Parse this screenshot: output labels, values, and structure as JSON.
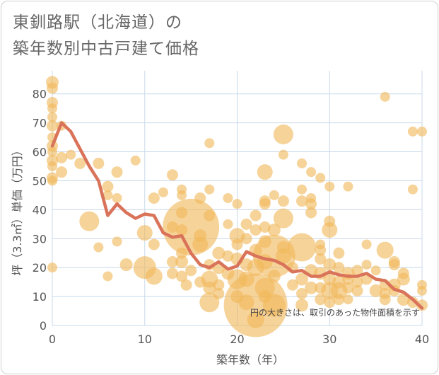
{
  "title_line1": "東釧路駅（北海道）の",
  "title_line2": "築年数別中古戸建て価格",
  "chart_data": {
    "type": "scatter",
    "title": "東釧路駅（北海道）の築年数別中古戸建て価格",
    "xlabel": "築年数（年）",
    "ylabel": "坪（3.3㎡）単価（万円）",
    "xlim": [
      0,
      40
    ],
    "ylim": [
      0,
      88
    ],
    "xticks": [
      0,
      10,
      20,
      30,
      40
    ],
    "yticks": [
      0,
      10,
      20,
      30,
      40,
      50,
      60,
      70,
      80
    ],
    "grid": true,
    "note": "円の大きさは、取引のあった物件面積を示す",
    "colors": {
      "bubble": "#f1b85a",
      "line": "#d9735a",
      "grid": "#c8d9ea"
    },
    "bubbles": [
      {
        "x": 0,
        "y": 84,
        "s": 9
      },
      {
        "x": 0,
        "y": 82,
        "s": 8
      },
      {
        "x": 0,
        "y": 77,
        "s": 8
      },
      {
        "x": 0,
        "y": 75,
        "s": 7
      },
      {
        "x": 0,
        "y": 72,
        "s": 7
      },
      {
        "x": 0,
        "y": 69,
        "s": 8
      },
      {
        "x": 0,
        "y": 65,
        "s": 7
      },
      {
        "x": 0,
        "y": 62,
        "s": 8
      },
      {
        "x": 0,
        "y": 60,
        "s": 7
      },
      {
        "x": 0,
        "y": 57,
        "s": 8
      },
      {
        "x": 0,
        "y": 55,
        "s": 7
      },
      {
        "x": 0,
        "y": 51,
        "s": 8
      },
      {
        "x": 0,
        "y": 50,
        "s": 7
      },
      {
        "x": 0,
        "y": 20,
        "s": 7
      },
      {
        "x": 1,
        "y": 69,
        "s": 7
      },
      {
        "x": 1,
        "y": 58,
        "s": 8
      },
      {
        "x": 1,
        "y": 53,
        "s": 8
      },
      {
        "x": 2,
        "y": 59,
        "s": 7
      },
      {
        "x": 3,
        "y": 56,
        "s": 8
      },
      {
        "x": 4,
        "y": 36,
        "s": 14
      },
      {
        "x": 5,
        "y": 27,
        "s": 7
      },
      {
        "x": 5,
        "y": 56,
        "s": 8
      },
      {
        "x": 6,
        "y": 48,
        "s": 8
      },
      {
        "x": 6,
        "y": 45,
        "s": 7
      },
      {
        "x": 6,
        "y": 17,
        "s": 7
      },
      {
        "x": 7,
        "y": 53,
        "s": 8
      },
      {
        "x": 7,
        "y": 44,
        "s": 7
      },
      {
        "x": 7,
        "y": 29,
        "s": 7
      },
      {
        "x": 8,
        "y": 21,
        "s": 9
      },
      {
        "x": 9,
        "y": 57,
        "s": 7
      },
      {
        "x": 10,
        "y": 32,
        "s": 11
      },
      {
        "x": 10,
        "y": 20,
        "s": 16
      },
      {
        "x": 11,
        "y": 44,
        "s": 8
      },
      {
        "x": 11,
        "y": 28,
        "s": 8
      },
      {
        "x": 11,
        "y": 17,
        "s": 12
      },
      {
        "x": 12,
        "y": 46,
        "s": 7
      },
      {
        "x": 13,
        "y": 52,
        "s": 8
      },
      {
        "x": 13,
        "y": 34,
        "s": 8
      },
      {
        "x": 13,
        "y": 22,
        "s": 8
      },
      {
        "x": 13,
        "y": 18,
        "s": 8
      },
      {
        "x": 14,
        "y": 47,
        "s": 7
      },
      {
        "x": 14,
        "y": 45,
        "s": 7
      },
      {
        "x": 14,
        "y": 39,
        "s": 8
      },
      {
        "x": 14,
        "y": 33,
        "s": 8
      },
      {
        "x": 14,
        "y": 25,
        "s": 8
      },
      {
        "x": 14,
        "y": 22,
        "s": 9
      },
      {
        "x": 14,
        "y": 17,
        "s": 8
      },
      {
        "x": 14.5,
        "y": 14,
        "s": 8
      },
      {
        "x": 15,
        "y": 34,
        "s": 40
      },
      {
        "x": 15,
        "y": 19,
        "s": 8
      },
      {
        "x": 16,
        "y": 44,
        "s": 8
      },
      {
        "x": 16,
        "y": 31,
        "s": 9
      },
      {
        "x": 16,
        "y": 28,
        "s": 11
      },
      {
        "x": 16,
        "y": 15,
        "s": 8
      },
      {
        "x": 17,
        "y": 63,
        "s": 7
      },
      {
        "x": 17,
        "y": 47,
        "s": 7
      },
      {
        "x": 17,
        "y": 38,
        "s": 8
      },
      {
        "x": 17,
        "y": 21,
        "s": 8
      },
      {
        "x": 17,
        "y": 16,
        "s": 12
      },
      {
        "x": 17,
        "y": 13,
        "s": 9
      },
      {
        "x": 17,
        "y": 8,
        "s": 14
      },
      {
        "x": 18,
        "y": 25,
        "s": 9
      },
      {
        "x": 18,
        "y": 20,
        "s": 9
      },
      {
        "x": 18,
        "y": 14,
        "s": 8
      },
      {
        "x": 18,
        "y": 11,
        "s": 8
      },
      {
        "x": 19,
        "y": 44,
        "s": 7
      },
      {
        "x": 19,
        "y": 35,
        "s": 7
      },
      {
        "x": 19,
        "y": 24,
        "s": 8
      },
      {
        "x": 19,
        "y": 18,
        "s": 9
      },
      {
        "x": 20,
        "y": 42,
        "s": 7
      },
      {
        "x": 20,
        "y": 31,
        "s": 11
      },
      {
        "x": 20,
        "y": 28,
        "s": 8
      },
      {
        "x": 20,
        "y": 23,
        "s": 9
      },
      {
        "x": 20,
        "y": 16,
        "s": 14
      },
      {
        "x": 20,
        "y": 10,
        "s": 9
      },
      {
        "x": 21,
        "y": 35,
        "s": 8
      },
      {
        "x": 21,
        "y": 30,
        "s": 8
      },
      {
        "x": 21,
        "y": 21,
        "s": 9
      },
      {
        "x": 21,
        "y": 16,
        "s": 11
      },
      {
        "x": 21,
        "y": 8,
        "s": 11
      },
      {
        "x": 22,
        "y": 38,
        "s": 8
      },
      {
        "x": 22,
        "y": 33,
        "s": 8
      },
      {
        "x": 22,
        "y": 26,
        "s": 9
      },
      {
        "x": 22,
        "y": 20,
        "s": 12
      },
      {
        "x": 22,
        "y": 7,
        "s": 45
      },
      {
        "x": 22,
        "y": 2,
        "s": 12
      },
      {
        "x": 23,
        "y": 53,
        "s": 11
      },
      {
        "x": 23,
        "y": 43,
        "s": 8
      },
      {
        "x": 23,
        "y": 42,
        "s": 8
      },
      {
        "x": 23,
        "y": 34,
        "s": 8
      },
      {
        "x": 23,
        "y": 29,
        "s": 9
      },
      {
        "x": 23,
        "y": 22,
        "s": 11
      },
      {
        "x": 23,
        "y": 13,
        "s": 14
      },
      {
        "x": 23,
        "y": 10,
        "s": 9
      },
      {
        "x": 24,
        "y": 45,
        "s": 7
      },
      {
        "x": 24,
        "y": 33,
        "s": 9
      },
      {
        "x": 24,
        "y": 24,
        "s": 30
      },
      {
        "x": 24,
        "y": 17,
        "s": 9
      },
      {
        "x": 24,
        "y": 7,
        "s": 16
      },
      {
        "x": 25,
        "y": 66,
        "s": 14
      },
      {
        "x": 25,
        "y": 59,
        "s": 7
      },
      {
        "x": 25,
        "y": 43,
        "s": 8
      },
      {
        "x": 25,
        "y": 37,
        "s": 14
      },
      {
        "x": 25,
        "y": 27,
        "s": 9
      },
      {
        "x": 25,
        "y": 24,
        "s": 11
      },
      {
        "x": 26,
        "y": 20,
        "s": 8
      },
      {
        "x": 26,
        "y": 14,
        "s": 8
      },
      {
        "x": 27,
        "y": 56,
        "s": 7
      },
      {
        "x": 27,
        "y": 47,
        "s": 7
      },
      {
        "x": 27,
        "y": 43,
        "s": 8
      },
      {
        "x": 27,
        "y": 27,
        "s": 20
      },
      {
        "x": 27,
        "y": 16,
        "s": 9
      },
      {
        "x": 27,
        "y": 11,
        "s": 8
      },
      {
        "x": 27,
        "y": 7,
        "s": 9
      },
      {
        "x": 28,
        "y": 53,
        "s": 7
      },
      {
        "x": 28,
        "y": 44,
        "s": 7
      },
      {
        "x": 28,
        "y": 42,
        "s": 8
      },
      {
        "x": 28,
        "y": 39,
        "s": 8
      },
      {
        "x": 28,
        "y": 19,
        "s": 9
      },
      {
        "x": 28,
        "y": 13,
        "s": 9
      },
      {
        "x": 29,
        "y": 51,
        "s": 7
      },
      {
        "x": 29,
        "y": 28,
        "s": 7
      },
      {
        "x": 29,
        "y": 26,
        "s": 8
      },
      {
        "x": 29,
        "y": 23,
        "s": 8
      },
      {
        "x": 29,
        "y": 18,
        "s": 9
      },
      {
        "x": 29,
        "y": 13,
        "s": 8
      },
      {
        "x": 29,
        "y": 9,
        "s": 8
      },
      {
        "x": 30,
        "y": 48,
        "s": 7
      },
      {
        "x": 30,
        "y": 36,
        "s": 8
      },
      {
        "x": 30,
        "y": 33,
        "s": 11
      },
      {
        "x": 30,
        "y": 21,
        "s": 9
      },
      {
        "x": 30,
        "y": 16,
        "s": 9
      },
      {
        "x": 30,
        "y": 12,
        "s": 12
      },
      {
        "x": 30,
        "y": 8,
        "s": 8
      },
      {
        "x": 31,
        "y": 25,
        "s": 8
      },
      {
        "x": 31,
        "y": 20,
        "s": 8
      },
      {
        "x": 31,
        "y": 15,
        "s": 9
      },
      {
        "x": 31,
        "y": 12,
        "s": 12
      },
      {
        "x": 31,
        "y": 9,
        "s": 8
      },
      {
        "x": 32,
        "y": 48,
        "s": 7
      },
      {
        "x": 32,
        "y": 18,
        "s": 9
      },
      {
        "x": 32,
        "y": 16,
        "s": 8
      },
      {
        "x": 32,
        "y": 13,
        "s": 8
      },
      {
        "x": 32,
        "y": 9,
        "s": 7
      },
      {
        "x": 33,
        "y": 19,
        "s": 8
      },
      {
        "x": 33,
        "y": 15,
        "s": 8
      },
      {
        "x": 33,
        "y": 12,
        "s": 8
      },
      {
        "x": 34,
        "y": 28,
        "s": 7
      },
      {
        "x": 34,
        "y": 21,
        "s": 7
      },
      {
        "x": 34,
        "y": 16,
        "s": 8
      },
      {
        "x": 35,
        "y": 19,
        "s": 7
      },
      {
        "x": 35,
        "y": 12,
        "s": 9
      },
      {
        "x": 36,
        "y": 79,
        "s": 7
      },
      {
        "x": 36,
        "y": 26,
        "s": 12
      },
      {
        "x": 36,
        "y": 14,
        "s": 8
      },
      {
        "x": 36,
        "y": 11,
        "s": 8
      },
      {
        "x": 36,
        "y": 9,
        "s": 8
      },
      {
        "x": 37,
        "y": 22,
        "s": 8
      },
      {
        "x": 37,
        "y": 21,
        "s": 8
      },
      {
        "x": 37,
        "y": 14,
        "s": 9
      },
      {
        "x": 37,
        "y": 12,
        "s": 8
      },
      {
        "x": 38,
        "y": 18,
        "s": 8
      },
      {
        "x": 38,
        "y": 16,
        "s": 9
      },
      {
        "x": 38,
        "y": 9,
        "s": 9
      },
      {
        "x": 39,
        "y": 67,
        "s": 7
      },
      {
        "x": 39,
        "y": 47,
        "s": 7
      },
      {
        "x": 39,
        "y": 8,
        "s": 8
      },
      {
        "x": 40,
        "y": 67,
        "s": 7
      },
      {
        "x": 40,
        "y": 14,
        "s": 7
      },
      {
        "x": 40,
        "y": 12,
        "s": 7
      },
      {
        "x": 40,
        "y": 7,
        "s": 8
      }
    ],
    "trend": {
      "x": [
        0,
        1,
        2,
        3,
        4,
        5,
        6,
        7,
        8,
        9,
        10,
        11,
        12,
        13,
        14,
        15,
        16,
        17,
        18,
        19,
        20,
        21,
        22,
        23,
        24,
        25,
        26,
        27,
        28,
        29,
        30,
        31,
        32,
        33,
        34,
        35,
        36,
        37,
        38,
        39,
        40
      ],
      "y": [
        62,
        70,
        67,
        61,
        55,
        50,
        38,
        42,
        39,
        37,
        38.5,
        38,
        32,
        30.5,
        31,
        25,
        21,
        20,
        22,
        19.5,
        20.5,
        25.5,
        24,
        23,
        22.5,
        21,
        18.5,
        19,
        17,
        17,
        18.5,
        17.5,
        17,
        17,
        18,
        16,
        15.5,
        12.5,
        11.5,
        9,
        6
      ]
    }
  }
}
